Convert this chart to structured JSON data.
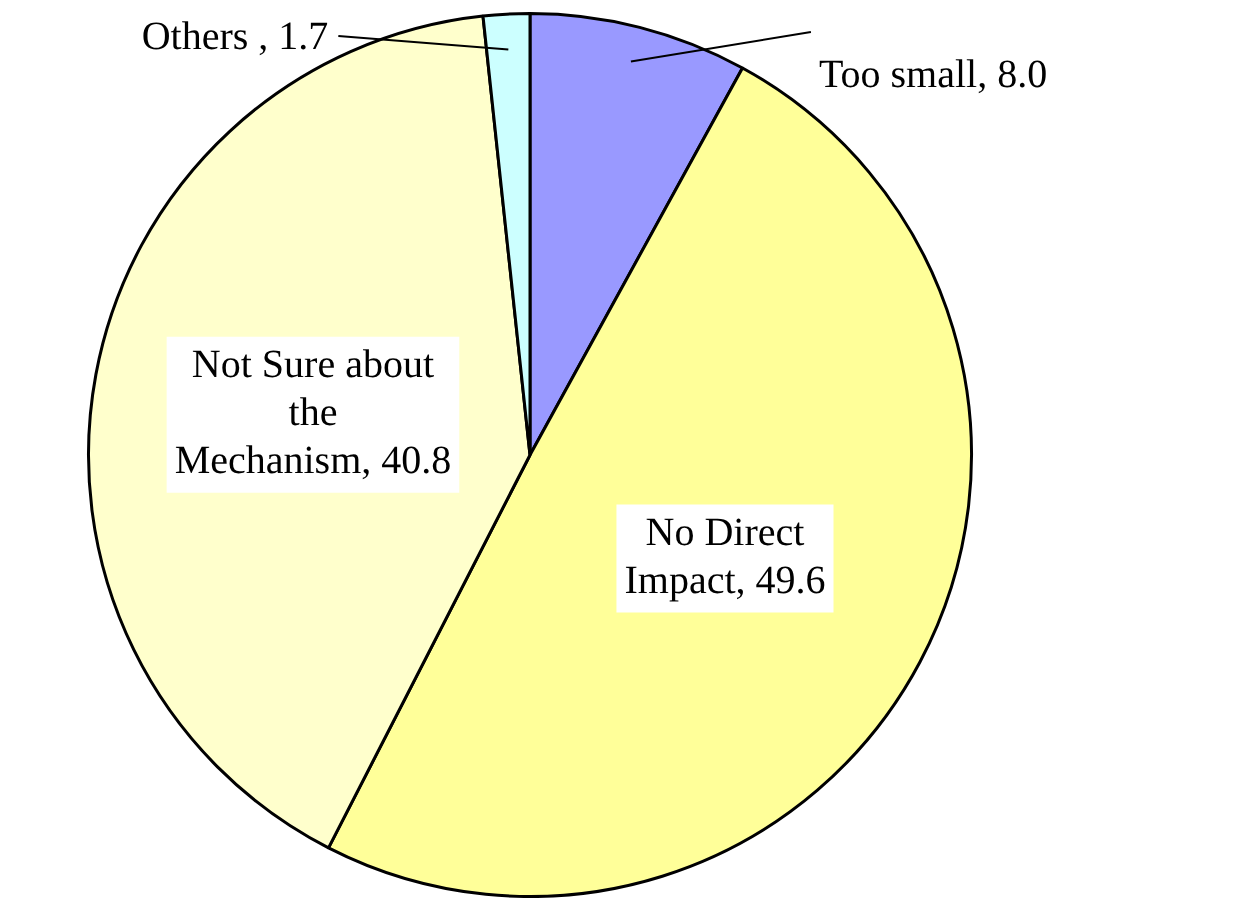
{
  "chart_data": {
    "type": "pie",
    "categories": [
      "Too small",
      "No Direct Impact",
      "Not Sure about the Mechanism",
      "Others "
    ],
    "values": [
      8.0,
      49.6,
      40.8,
      1.7
    ],
    "value_labels": [
      "8.0",
      "49.6",
      "40.8",
      "1.7"
    ],
    "colors": [
      "#9999ff",
      "#ffff99",
      "#ffffcc",
      "#ccffff"
    ],
    "legend": false
  }
}
